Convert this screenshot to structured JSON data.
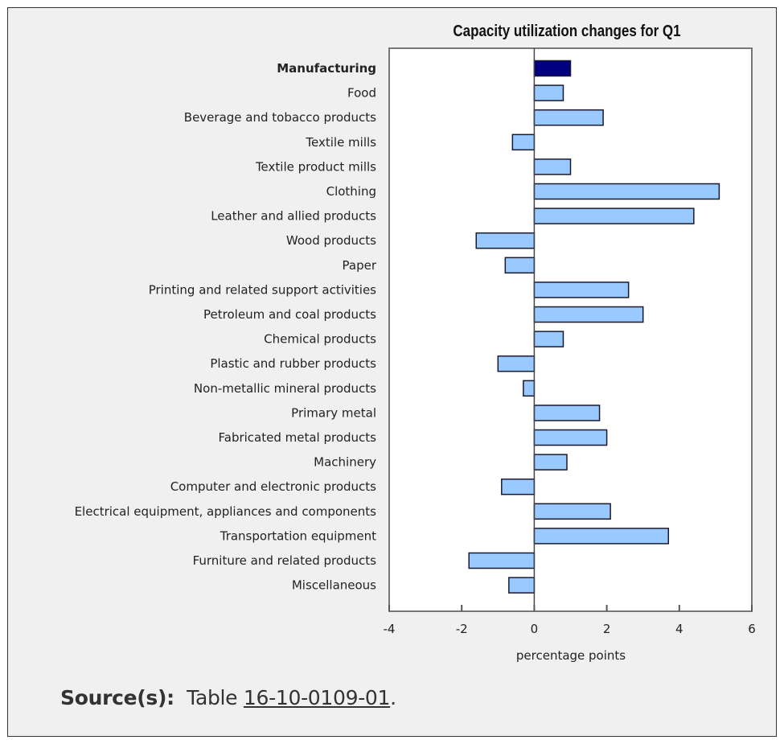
{
  "chart_data": {
    "type": "bar",
    "orientation": "horizontal",
    "title": "Capacity utilization changes for Q1",
    "xlabel": "percentage points",
    "ylabel": "",
    "xlim": [
      -4,
      6
    ],
    "xticks": [
      -4,
      -2,
      0,
      2,
      4,
      6
    ],
    "grid": false,
    "categories": [
      "Manufacturing",
      "Food",
      "Beverage and tobacco products",
      "Textile mills",
      "Textile product mills",
      "Clothing",
      "Leather and allied products",
      "Wood products",
      "Paper",
      "Printing and related support activities",
      "Petroleum and coal products",
      "Chemical products",
      "Plastic and rubber products",
      "Non-metallic mineral products",
      "Primary metal",
      "Fabricated metal products",
      "Machinery",
      "Computer and electronic products",
      "Electrical equipment, appliances and components",
      "Transportation equipment",
      "Furniture and related products",
      "Miscellaneous"
    ],
    "values": [
      1.0,
      0.8,
      1.9,
      -0.6,
      1.0,
      5.1,
      4.4,
      -1.6,
      -0.8,
      2.6,
      3.0,
      0.8,
      -1.0,
      -0.3,
      1.8,
      2.0,
      0.9,
      -0.9,
      2.1,
      3.7,
      -1.8,
      -0.7
    ],
    "highlight_category": "Manufacturing",
    "colors": {
      "highlight": "#000080",
      "bar": "#99c9ff",
      "outline": "#1a1a2e"
    }
  },
  "source": {
    "label": "Source(s):",
    "prefix": "Table",
    "link": "16-10-0109-01",
    "suffix": "."
  }
}
